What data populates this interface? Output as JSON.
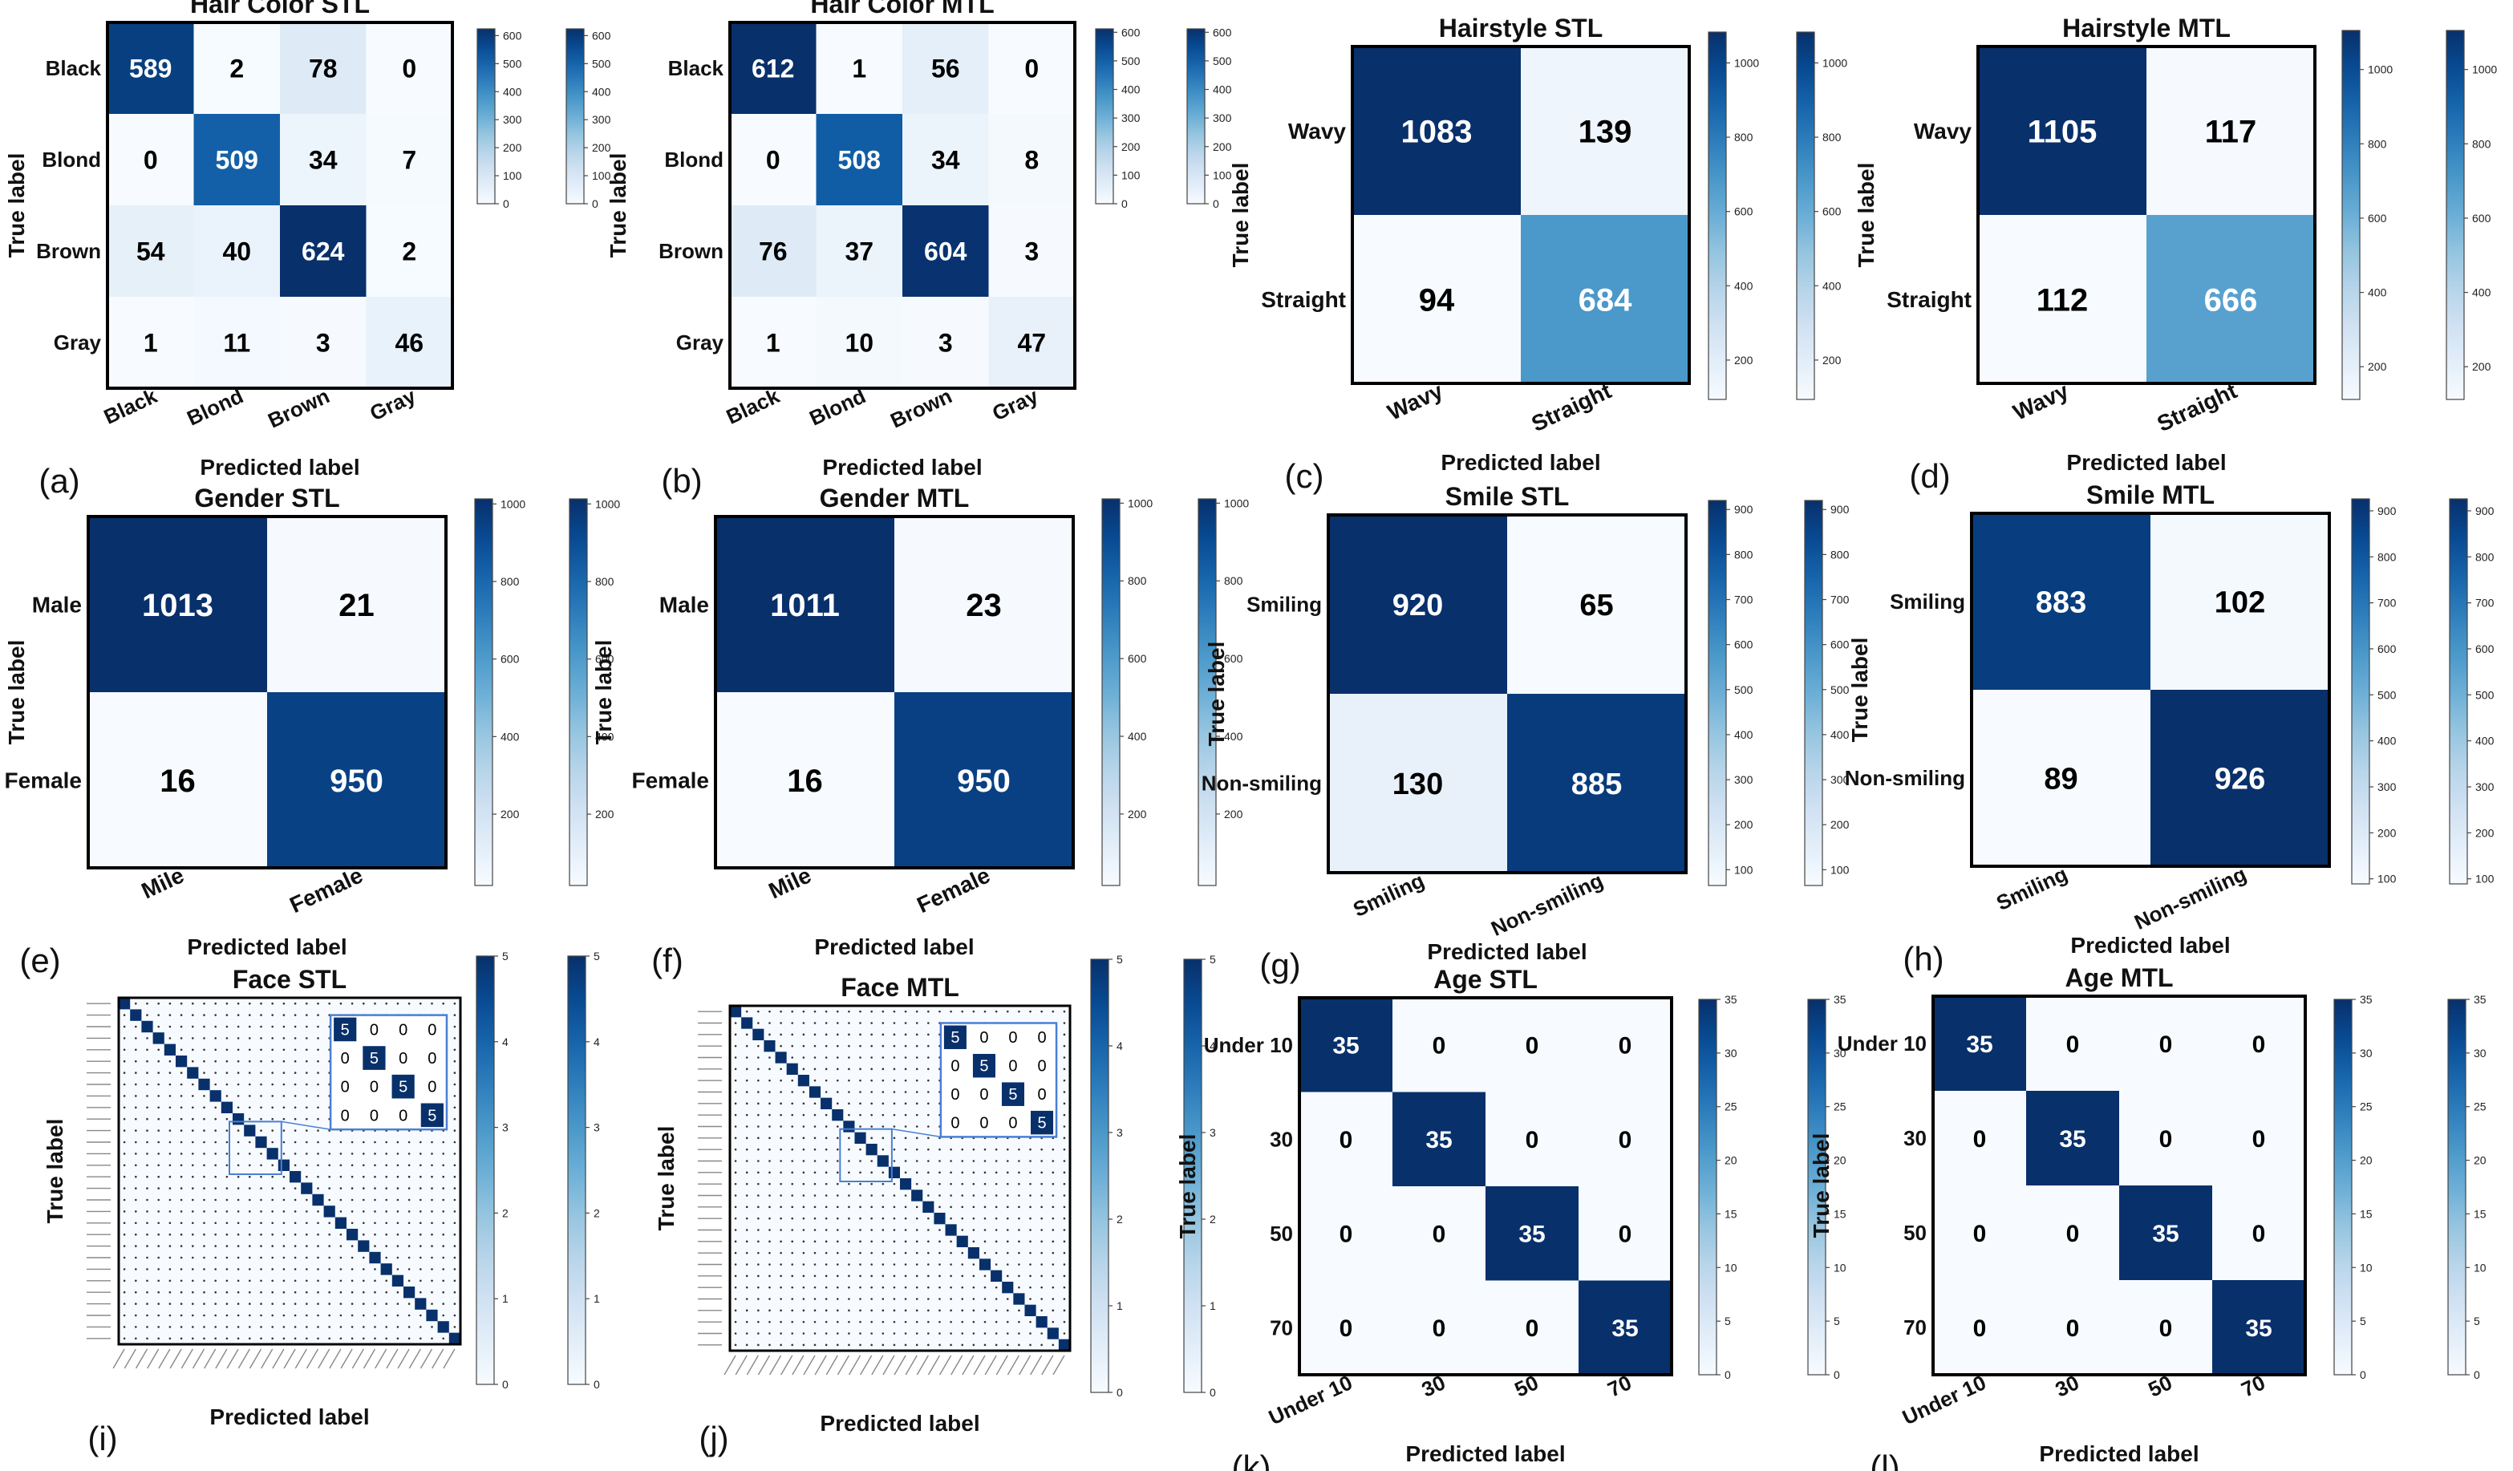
{
  "colormap": [
    "#f7fbff",
    "#deebf7",
    "#c6dbef",
    "#9ecae1",
    "#6baed6",
    "#4292c6",
    "#2171b5",
    "#08519c",
    "#08306b"
  ],
  "chart_data": [
    {
      "type": "heatmap",
      "panel_label": "(a)",
      "title": "Hair Color STL",
      "xlabel": "Predicted label",
      "ylabel": "True label",
      "categories": [
        "Black",
        "Blond",
        "Brown",
        "Gray"
      ],
      "matrix": [
        [
          589,
          2,
          78,
          0
        ],
        [
          0,
          509,
          34,
          7
        ],
        [
          54,
          40,
          624,
          2
        ],
        [
          1,
          11,
          3,
          46
        ]
      ],
      "colorbar_ticks": [
        0,
        100,
        200,
        300,
        400,
        500,
        600
      ],
      "vmax": 624
    },
    {
      "type": "heatmap",
      "panel_label": "(b)",
      "title": "Hair Color MTL",
      "xlabel": "Predicted label",
      "ylabel": "True label",
      "categories": [
        "Black",
        "Blond",
        "Brown",
        "Gray"
      ],
      "matrix": [
        [
          612,
          1,
          56,
          0
        ],
        [
          0,
          508,
          34,
          8
        ],
        [
          76,
          37,
          604,
          3
        ],
        [
          1,
          10,
          3,
          47
        ]
      ],
      "colorbar_ticks": [
        0,
        100,
        200,
        300,
        400,
        500,
        600
      ],
      "vmax": 612
    },
    {
      "type": "heatmap",
      "panel_label": "(c)",
      "title": "Hairstyle STL",
      "xlabel": "Predicted label",
      "ylabel": "True label",
      "categories": [
        "Wavy",
        "Straight"
      ],
      "matrix": [
        [
          1083,
          139
        ],
        [
          94,
          684
        ]
      ],
      "colorbar_ticks": [
        200,
        400,
        600,
        800,
        1000
      ],
      "vmin": 94,
      "vmax": 1083
    },
    {
      "type": "heatmap",
      "panel_label": "(d)",
      "title": "Hairstyle MTL",
      "xlabel": "Predicted label",
      "ylabel": "True label",
      "categories": [
        "Wavy",
        "Straight"
      ],
      "matrix": [
        [
          1105,
          117
        ],
        [
          112,
          666
        ]
      ],
      "colorbar_ticks": [
        200,
        400,
        600,
        800,
        1000
      ],
      "vmin": 112,
      "vmax": 1105
    },
    {
      "type": "heatmap",
      "panel_label": "(e)",
      "title": "Gender STL",
      "xlabel": "Predicted label",
      "ylabel": "True label",
      "xcategories": [
        "Mile",
        "Female"
      ],
      "ycategories": [
        "Male",
        "Female"
      ],
      "matrix": [
        [
          1013,
          21
        ],
        [
          16,
          950
        ]
      ],
      "colorbar_ticks": [
        200,
        400,
        600,
        800,
        1000
      ],
      "vmin": 16,
      "vmax": 1013
    },
    {
      "type": "heatmap",
      "panel_label": "(f)",
      "title": "Gender MTL",
      "xlabel": "Predicted label",
      "ylabel": "True label",
      "xcategories": [
        "Mile",
        "Female"
      ],
      "ycategories": [
        "Male",
        "Female"
      ],
      "matrix": [
        [
          1011,
          23
        ],
        [
          16,
          950
        ]
      ],
      "colorbar_ticks": [
        200,
        400,
        600,
        800,
        1000
      ],
      "vmin": 16,
      "vmax": 1011
    },
    {
      "type": "heatmap",
      "panel_label": "(g)",
      "title": "Smile STL",
      "xlabel": "Predicted label",
      "ylabel": "True label",
      "categories": [
        "Smiling",
        "Non-smiling"
      ],
      "matrix": [
        [
          920,
          65
        ],
        [
          130,
          885
        ]
      ],
      "colorbar_ticks": [
        100,
        200,
        300,
        400,
        500,
        600,
        700,
        800,
        900
      ],
      "vmin": 65,
      "vmax": 920
    },
    {
      "type": "heatmap",
      "panel_label": "(h)",
      "title": "Smile MTL",
      "xlabel": "Predicted label",
      "ylabel": "True label",
      "categories": [
        "Smiling",
        "Non-smiling"
      ],
      "matrix": [
        [
          883,
          102
        ],
        [
          89,
          926
        ]
      ],
      "colorbar_ticks": [
        100,
        200,
        300,
        400,
        500,
        600,
        700,
        800,
        900
      ],
      "vmin": 89,
      "vmax": 926
    },
    {
      "type": "heatmap",
      "panel_label": "(i)",
      "title": "Face STL",
      "xlabel": "Predicted label",
      "ylabel": "True label",
      "n_classes": 30,
      "diagonal_value": 5,
      "off_diagonal_value": 0,
      "inset_matrix": [
        [
          5,
          0,
          0,
          0
        ],
        [
          0,
          5,
          0,
          0
        ],
        [
          0,
          0,
          5,
          0
        ],
        [
          0,
          0,
          0,
          5
        ]
      ],
      "colorbar_ticks": [
        0,
        1,
        2,
        3,
        4,
        5
      ],
      "vmax": 5
    },
    {
      "type": "heatmap",
      "panel_label": "(j)",
      "title": "Face MTL",
      "xlabel": "Predicted label",
      "ylabel": "True label",
      "n_classes": 30,
      "diagonal_value": 5,
      "off_diagonal_value": 0,
      "inset_matrix": [
        [
          5,
          0,
          0,
          0
        ],
        [
          0,
          5,
          0,
          0
        ],
        [
          0,
          0,
          5,
          0
        ],
        [
          0,
          0,
          0,
          5
        ]
      ],
      "colorbar_ticks": [
        0,
        1,
        2,
        3,
        4,
        5
      ],
      "vmax": 5
    },
    {
      "type": "heatmap",
      "panel_label": "(k)",
      "title": "Age STL",
      "xlabel": "Predicted label",
      "ylabel": "True label",
      "categories": [
        "Under 10",
        "30",
        "50",
        "70"
      ],
      "matrix": [
        [
          35,
          0,
          0,
          0
        ],
        [
          0,
          35,
          0,
          0
        ],
        [
          0,
          0,
          35,
          0
        ],
        [
          0,
          0,
          0,
          35
        ]
      ],
      "colorbar_ticks": [
        0,
        5,
        10,
        15,
        20,
        25,
        30,
        35
      ],
      "vmax": 35
    },
    {
      "type": "heatmap",
      "panel_label": "(l)",
      "title": "Age MTL",
      "xlabel": "Predicted label",
      "ylabel": "True label",
      "categories": [
        "Under 10",
        "30",
        "50",
        "70"
      ],
      "matrix": [
        [
          35,
          0,
          0,
          0
        ],
        [
          0,
          35,
          0,
          0
        ],
        [
          0,
          0,
          35,
          0
        ],
        [
          0,
          0,
          0,
          35
        ]
      ],
      "colorbar_ticks": [
        0,
        5,
        10,
        15,
        20,
        25,
        30,
        35
      ],
      "vmax": 35
    }
  ]
}
